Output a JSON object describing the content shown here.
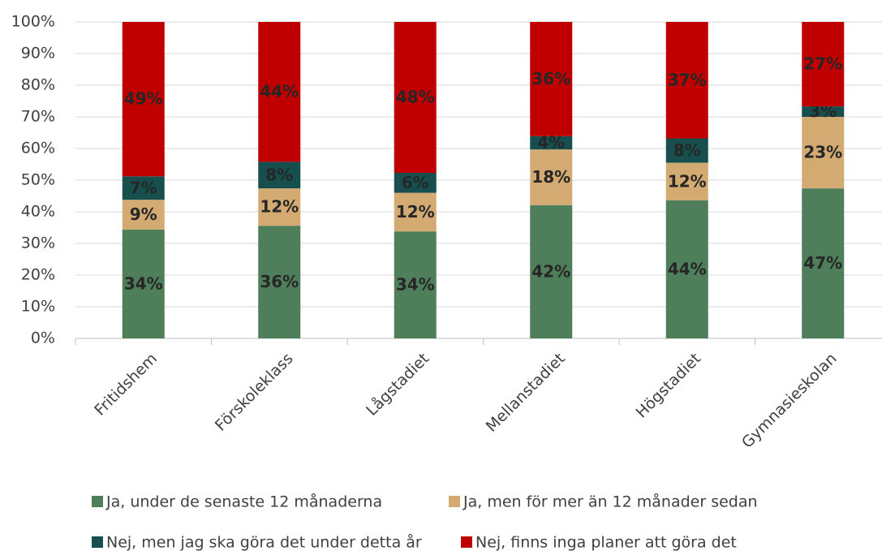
{
  "chart_data": {
    "type": "stacked_bar",
    "categories": [
      "Fritidshem",
      "Förskoleklass",
      "Lågstadiet",
      "Mellanstadiet",
      "Högstadiet",
      "Gymnasieskolan"
    ],
    "series": [
      {
        "name": "Ja, under de senaste 12 månaderna",
        "color": "#4f7f5a",
        "values": [
          34.4,
          35.6,
          33.8,
          42.1,
          43.6,
          47.4
        ],
        "value_labels": [
          "34%",
          "36%",
          "34%",
          "42%",
          "44%",
          "47%"
        ]
      },
      {
        "name": "Ja, men för mer än 12 månader sedan",
        "color": "#d4aa73",
        "values": [
          9.4,
          11.8,
          12.2,
          17.6,
          11.9,
          22.6
        ],
        "value_labels": [
          "9%",
          "12%",
          "12%",
          "18%",
          "12%",
          "23%"
        ]
      },
      {
        "name": "Nej, men jag ska göra det under detta år",
        "color": "#174f4f",
        "values": [
          7.4,
          8.4,
          6.3,
          4.2,
          7.7,
          3.3
        ],
        "value_labels": [
          "7%",
          "8%",
          "6%",
          "4%",
          "8%",
          "3%"
        ]
      },
      {
        "name": "Nej, finns inga planer att göra det",
        "color": "#c00000",
        "values": [
          48.8,
          44.2,
          47.7,
          36.1,
          36.8,
          26.7
        ],
        "value_labels": [
          "49%",
          "44%",
          "48%",
          "36%",
          "37%",
          "27%"
        ]
      }
    ],
    "ylim": [
      0,
      100
    ],
    "yticks": [
      {
        "value": 0,
        "label": "0%"
      },
      {
        "value": 10,
        "label": "10%"
      },
      {
        "value": 20,
        "label": "20%"
      },
      {
        "value": 30,
        "label": "30%"
      },
      {
        "value": 40,
        "label": "40%"
      },
      {
        "value": 50,
        "label": "50%"
      },
      {
        "value": 60,
        "label": "60%"
      },
      {
        "value": 70,
        "label": "70%"
      },
      {
        "value": 80,
        "label": "80%"
      },
      {
        "value": 90,
        "label": "90%"
      },
      {
        "value": 100,
        "label": "100%"
      }
    ],
    "grid": true
  }
}
